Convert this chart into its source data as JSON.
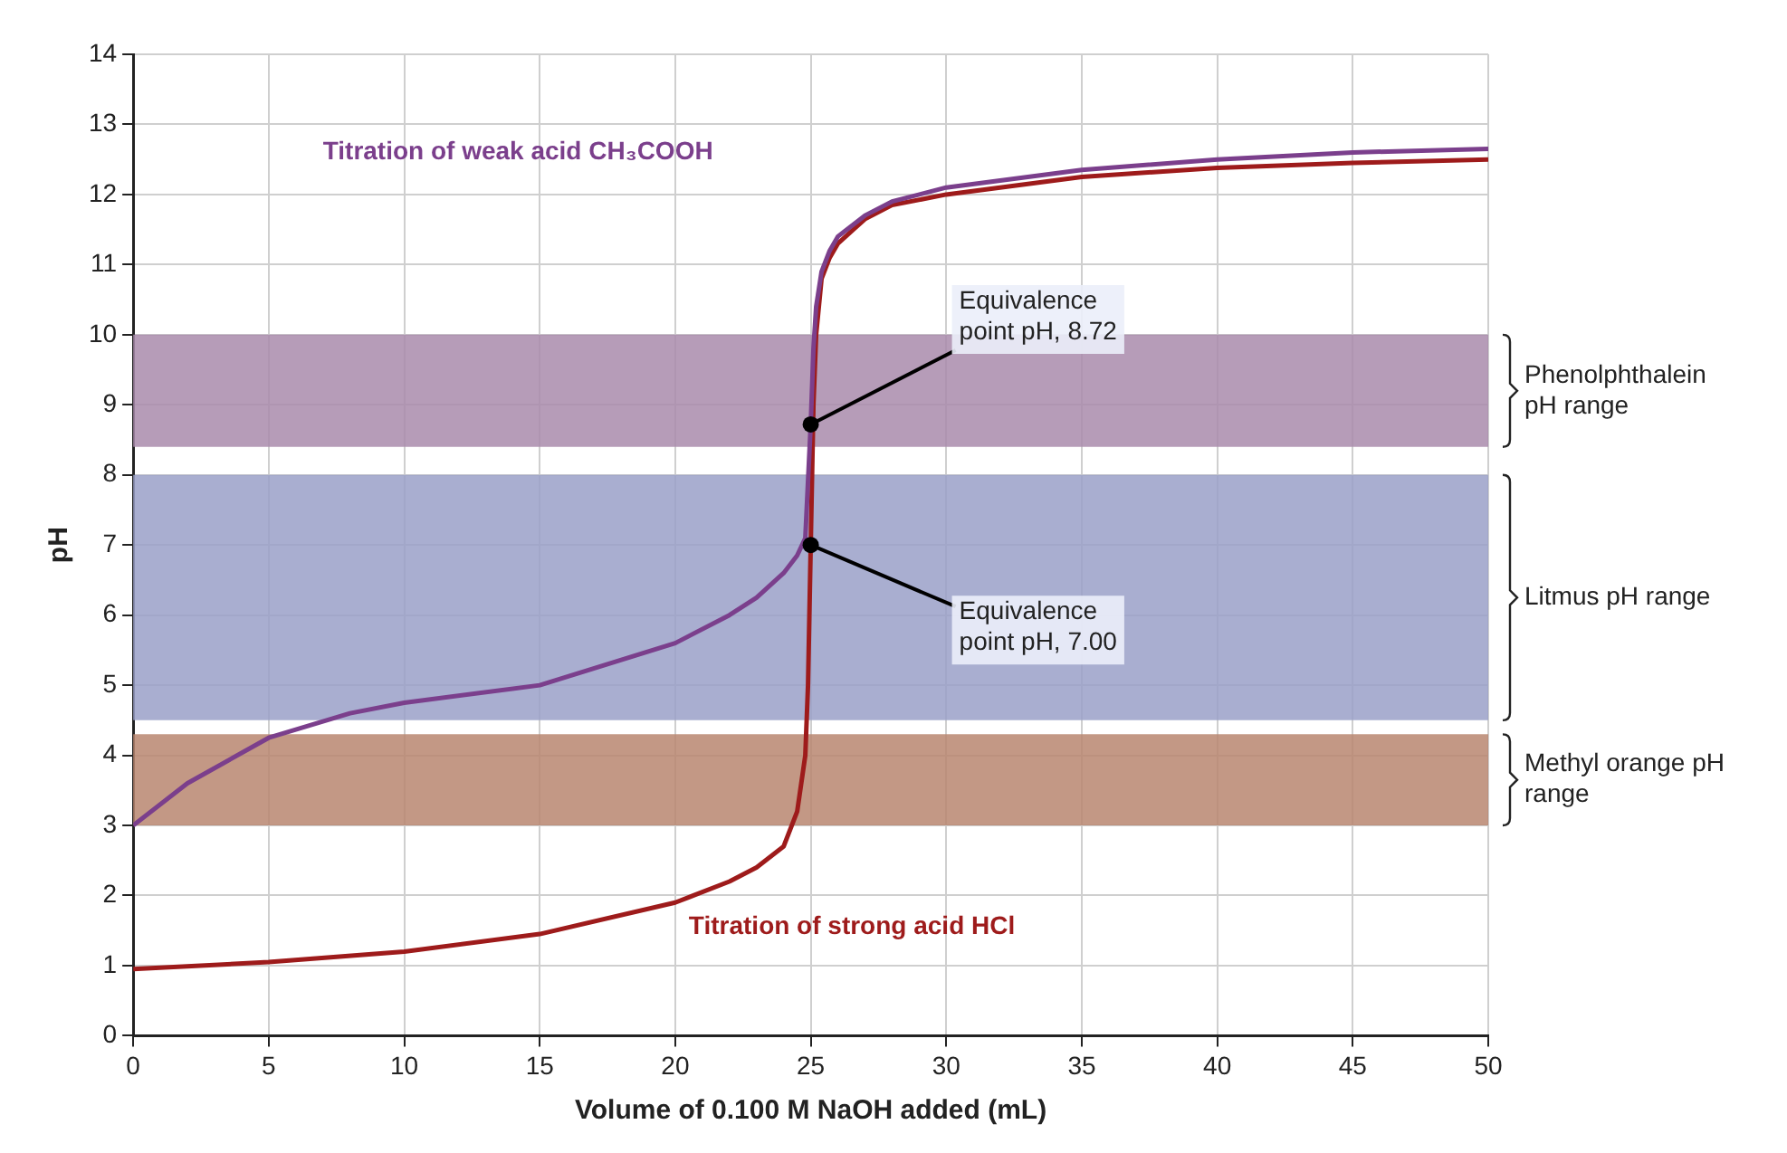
{
  "chart_data": {
    "type": "line",
    "xlabel": "Volume of 0.100 M NaOH added (mL)",
    "ylabel": "pH",
    "xlim": [
      0,
      50
    ],
    "xticks": [
      0,
      5,
      10,
      15,
      20,
      25,
      30,
      35,
      40,
      45,
      50
    ],
    "ylim": [
      0,
      14
    ],
    "yticks": [
      0,
      1,
      2,
      3,
      4,
      5,
      6,
      7,
      8,
      9,
      10,
      11,
      12,
      13,
      14
    ],
    "grid": true,
    "legend": false,
    "marker": "none",
    "line_style": "solid",
    "series": [
      {
        "name": "Titration of weak acid CH₃COOH",
        "color": "#7b3f8c",
        "x": [
          0,
          2,
          5,
          8,
          10,
          15,
          20,
          22,
          23,
          24,
          24.5,
          24.8,
          25,
          25.1,
          25.2,
          25.4,
          25.7,
          26,
          27,
          28,
          30,
          35,
          40,
          45,
          50
        ],
        "values": [
          3.0,
          3.6,
          4.25,
          4.6,
          4.75,
          5.0,
          5.6,
          6.0,
          6.25,
          6.6,
          6.85,
          7.1,
          8.72,
          9.8,
          10.4,
          10.9,
          11.2,
          11.4,
          11.7,
          11.9,
          12.1,
          12.35,
          12.5,
          12.6,
          12.65
        ]
      },
      {
        "name": "Titration of strong acid HCl",
        "color": "#9e1b1b",
        "x": [
          0,
          5,
          10,
          15,
          20,
          22,
          23,
          24,
          24.5,
          24.8,
          24.9,
          25,
          25.1,
          25.2,
          25.4,
          25.7,
          26,
          27,
          28,
          30,
          35,
          40,
          45,
          50
        ],
        "values": [
          0.95,
          1.05,
          1.2,
          1.45,
          1.9,
          2.2,
          2.4,
          2.7,
          3.2,
          4.0,
          5.0,
          7.0,
          9.0,
          10.0,
          10.8,
          11.1,
          11.3,
          11.65,
          11.85,
          12.0,
          12.25,
          12.38,
          12.45,
          12.5
        ]
      }
    ],
    "bands": [
      {
        "axis": "y",
        "from": 8.4,
        "to": 10,
        "label": "Phenolphthalein pH range",
        "color": "#a98bab"
      },
      {
        "axis": "y",
        "from": 4.5,
        "to": 8,
        "label": "Litmus pH range",
        "color": "#9aa0c8"
      },
      {
        "axis": "y",
        "from": 3.0,
        "to": 4.3,
        "label": "Methyl orange pH range",
        "color": "#b98670"
      }
    ],
    "annotations": [
      {
        "text": "Equivalence point pH, 8.72",
        "x": 25,
        "y": 8.72
      },
      {
        "text": "Equivalence point pH, 7.00",
        "x": 25,
        "y": 7.0
      }
    ]
  }
}
